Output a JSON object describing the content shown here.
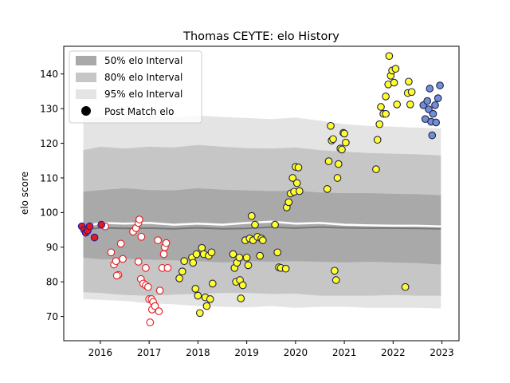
{
  "chart_data": {
    "type": "scatter",
    "title": "Thomas CEYTE: elo History",
    "xlabel": "",
    "ylabel": "elo score",
    "xlim": [
      2015.25,
      2023.35
    ],
    "ylim": [
      63,
      148
    ],
    "x_ticks": [
      2016,
      2017,
      2018,
      2019,
      2020,
      2021,
      2022,
      2023
    ],
    "y_ticks": [
      70,
      80,
      90,
      100,
      110,
      120,
      130,
      140
    ],
    "grid": false,
    "legend": {
      "position": "top-left",
      "entries": [
        {
          "label": "50% elo Interval",
          "kind": "band50"
        },
        {
          "label": "80% elo Interval",
          "kind": "band80"
        },
        {
          "label": "95% elo Interval",
          "kind": "band95"
        },
        {
          "label": "Post Match elo",
          "kind": "dot"
        }
      ]
    },
    "colors": {
      "band50": "#a9a9a9",
      "band80": "#c6c6c6",
      "band95": "#e4e4e4",
      "median_line": "#ffffff",
      "center_line": "#777777",
      "marker_red_edge": "#e41a1c",
      "marker_red_face": "#ffffff",
      "marker_blue_edge": "#1a1aa8",
      "marker_blue_face": "#e41a1c",
      "marker_yellow_face": "#ffff2e",
      "marker_lightblue_face": "#6f8fd6",
      "marker_dark_edge": "#222244"
    },
    "bands": {
      "x": [
        2015.65,
        2016.0,
        2016.5,
        2017.0,
        2017.5,
        2018.0,
        2018.5,
        2019.0,
        2019.5,
        2020.0,
        2020.5,
        2021.0,
        2021.5,
        2022.0,
        2022.5,
        2022.98
      ],
      "p95_upper": [
        127,
        127.6,
        127.2,
        127.8,
        127.5,
        128.0,
        127.6,
        127.3,
        127.0,
        127.4,
        126.5,
        125.5,
        125.0,
        124.8,
        124.5,
        124.3
      ],
      "p80_upper": [
        118,
        119,
        118.5,
        119,
        118.8,
        119.5,
        119,
        118.6,
        118.5,
        118.8,
        118.0,
        117.6,
        117.2,
        117.0,
        116.8,
        116.5
      ],
      "p50_upper": [
        106,
        106.5,
        107,
        106.5,
        106.4,
        107,
        106.6,
        106.4,
        106.2,
        106.3,
        105.8,
        105.6,
        105.6,
        105.4,
        105.3,
        105.0
      ],
      "p50_lower": [
        87,
        86.5,
        86.6,
        86.4,
        86.2,
        86.0,
        85.6,
        86.0,
        85.8,
        86.0,
        85.8,
        85.6,
        85.8,
        85.6,
        85.4,
        85.0
      ],
      "p80_lower": [
        77,
        76.8,
        76.2,
        76.0,
        76.3,
        76.5,
        76.8,
        76.8,
        76.5,
        76.6,
        76.0,
        76.0,
        76.0,
        76.2,
        76.0,
        76.0
      ],
      "p95_lower": [
        75,
        74.8,
        74.5,
        73.8,
        73.5,
        73.0,
        72.8,
        72.6,
        73.0,
        72.5,
        72.8,
        72.8,
        72.5,
        72.5,
        72.5,
        72.3
      ],
      "median": [
        95.8,
        97.0,
        96.8,
        97.0,
        96.5,
        96.8,
        96.5,
        97.0,
        97.4,
        96.8,
        97.0,
        96.5,
        96.3,
        96.2,
        96.2,
        96.0
      ],
      "center": [
        95.0,
        95.6,
        95.4,
        95.5,
        95.3,
        95.6,
        95.3,
        95.4,
        95.8,
        95.5,
        95.8,
        95.6,
        95.5,
        95.5,
        95.4,
        95.3
      ]
    },
    "series": [
      {
        "style": "red",
        "points": [
          [
            2016.1,
            96
          ],
          [
            2016.22,
            88.5
          ],
          [
            2016.28,
            85
          ],
          [
            2016.32,
            86
          ],
          [
            2016.37,
            82
          ],
          [
            2016.34,
            81.8
          ],
          [
            2016.42,
            91
          ],
          [
            2016.46,
            86.6
          ],
          [
            2016.67,
            94.5
          ],
          [
            2016.73,
            95.5
          ],
          [
            2016.78,
            97
          ],
          [
            2016.8,
            98
          ],
          [
            2016.84,
            93
          ],
          [
            2016.78,
            85.8
          ],
          [
            2016.83,
            80.8
          ],
          [
            2016.88,
            79.5
          ],
          [
            2016.93,
            79
          ],
          [
            2016.98,
            78.5
          ],
          [
            2016.93,
            84
          ],
          [
            2017.0,
            75
          ],
          [
            2017.05,
            75
          ],
          [
            2017.08,
            74.2
          ],
          [
            2017.06,
            72
          ],
          [
            2017.12,
            73
          ],
          [
            2017.02,
            68.3
          ],
          [
            2017.18,
            92
          ],
          [
            2017.2,
            71.5
          ],
          [
            2017.22,
            77.5
          ],
          [
            2017.27,
            84
          ],
          [
            2017.3,
            88
          ],
          [
            2017.32,
            90
          ],
          [
            2017.35,
            91.2
          ],
          [
            2017.38,
            84
          ]
        ]
      },
      {
        "style": "blue",
        "points": [
          [
            2015.62,
            96
          ],
          [
            2015.67,
            95
          ],
          [
            2015.7,
            94.2
          ],
          [
            2015.74,
            94.8
          ],
          [
            2015.78,
            96
          ],
          [
            2015.88,
            92.8
          ],
          [
            2016.02,
            96.5
          ]
        ]
      },
      {
        "style": "yellow",
        "points": [
          [
            2017.62,
            81
          ],
          [
            2017.68,
            83
          ],
          [
            2017.72,
            86
          ],
          [
            2017.88,
            87
          ],
          [
            2017.9,
            85.5
          ],
          [
            2017.95,
            78
          ],
          [
            2017.97,
            88
          ],
          [
            2018.0,
            76
          ],
          [
            2018.04,
            71
          ],
          [
            2018.08,
            89.8
          ],
          [
            2018.12,
            88
          ],
          [
            2018.15,
            75.5
          ],
          [
            2018.18,
            73
          ],
          [
            2018.22,
            87.5
          ],
          [
            2018.25,
            75
          ],
          [
            2018.28,
            88.5
          ],
          [
            2018.3,
            79.5
          ],
          [
            2018.72,
            88
          ],
          [
            2018.75,
            84
          ],
          [
            2018.78,
            80
          ],
          [
            2018.8,
            85.5
          ],
          [
            2018.85,
            87
          ],
          [
            2018.86,
            80.5
          ],
          [
            2018.88,
            75.2
          ],
          [
            2018.92,
            79
          ],
          [
            2018.97,
            92
          ],
          [
            2019.0,
            87
          ],
          [
            2019.03,
            84.8
          ],
          [
            2019.06,
            92.5
          ],
          [
            2019.1,
            99
          ],
          [
            2019.13,
            92
          ],
          [
            2019.17,
            96.5
          ],
          [
            2019.22,
            93
          ],
          [
            2019.27,
            87.5
          ],
          [
            2019.3,
            92.5
          ],
          [
            2019.33,
            92
          ],
          [
            2019.58,
            96.5
          ],
          [
            2019.63,
            88.5
          ],
          [
            2019.66,
            84.2
          ],
          [
            2019.7,
            84
          ],
          [
            2019.8,
            83.8
          ],
          [
            2019.82,
            101.5
          ],
          [
            2019.86,
            103
          ],
          [
            2019.9,
            105.5
          ],
          [
            2019.94,
            110
          ],
          [
            2019.97,
            106
          ],
          [
            2020.0,
            113.2
          ],
          [
            2020.03,
            108.5
          ],
          [
            2020.06,
            113
          ],
          [
            2020.08,
            106.2
          ],
          [
            2020.65,
            106.8
          ],
          [
            2020.68,
            114.8
          ],
          [
            2020.72,
            125
          ],
          [
            2020.74,
            120.8
          ],
          [
            2020.77,
            121.2
          ],
          [
            2020.8,
            83.2
          ],
          [
            2020.83,
            80.5
          ],
          [
            2020.86,
            110
          ],
          [
            2020.88,
            114
          ],
          [
            2020.92,
            118.5
          ],
          [
            2020.95,
            118.2
          ],
          [
            2020.98,
            123
          ],
          [
            2021.0,
            122.8
          ],
          [
            2021.03,
            120.2
          ],
          [
            2021.65,
            112.5
          ],
          [
            2021.68,
            121
          ],
          [
            2021.72,
            125.5
          ],
          [
            2021.75,
            130.5
          ],
          [
            2021.8,
            128.5
          ],
          [
            2021.85,
            128.5
          ],
          [
            2021.85,
            133.5
          ],
          [
            2021.9,
            137
          ],
          [
            2021.92,
            145.2
          ],
          [
            2021.95,
            139.5
          ],
          [
            2021.98,
            141
          ],
          [
            2022.02,
            137.5
          ],
          [
            2022.05,
            141.5
          ],
          [
            2022.08,
            131.2
          ],
          [
            2022.25,
            78.5
          ],
          [
            2022.3,
            134.5
          ],
          [
            2022.32,
            137.8
          ],
          [
            2022.35,
            131.2
          ],
          [
            2022.38,
            134.8
          ]
        ]
      },
      {
        "style": "lightblue",
        "points": [
          [
            2022.62,
            131
          ],
          [
            2022.66,
            127
          ],
          [
            2022.7,
            132.2
          ],
          [
            2022.73,
            129.8
          ],
          [
            2022.75,
            135.8
          ],
          [
            2022.78,
            126.2
          ],
          [
            2022.8,
            122.3
          ],
          [
            2022.82,
            128.5
          ],
          [
            2022.86,
            131
          ],
          [
            2022.88,
            126
          ],
          [
            2022.92,
            133
          ],
          [
            2022.96,
            136.7
          ]
        ]
      }
    ]
  }
}
